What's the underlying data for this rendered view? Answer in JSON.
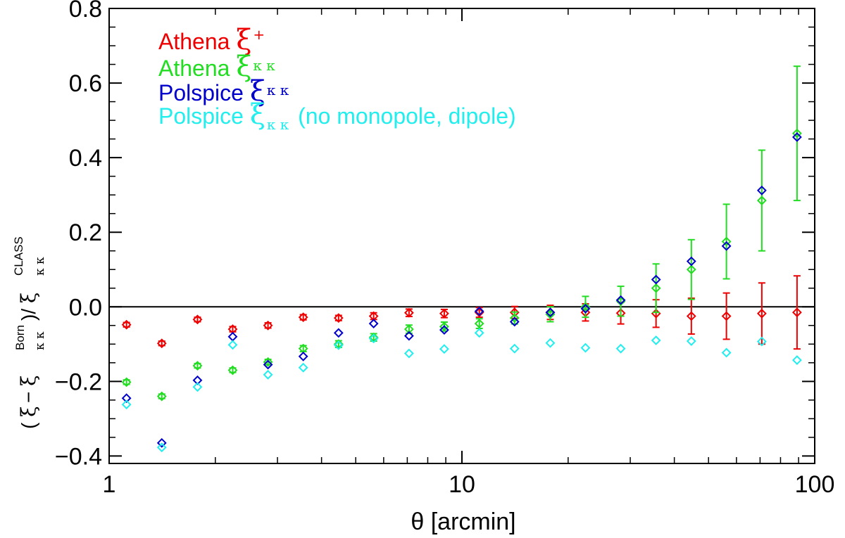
{
  "chart_data": {
    "type": "scatter",
    "xscale": "log",
    "xlim": [
      1,
      100
    ],
    "ylim": [
      -0.42,
      0.8
    ],
    "xlabel": "θ [arcmin]",
    "ylabel": {
      "open": "( ",
      "xi1": "ξ",
      "minus": " − ",
      "xi2": "ξ",
      "born": "Born",
      "kk1": "κ κ",
      "close_div": " )/ ",
      "xi3": "ξ",
      "class_sup": "CLASS",
      "kk2": "κ κ"
    },
    "x_ticks": [
      {
        "value": 1,
        "label": "1"
      },
      {
        "value": 10,
        "label": "10"
      },
      {
        "value": 100,
        "label": "100"
      }
    ],
    "y_ticks": [
      {
        "value": 0.8,
        "label": "0.8"
      },
      {
        "value": 0.6,
        "label": "0.6"
      },
      {
        "value": 0.4,
        "label": "0.4"
      },
      {
        "value": 0.2,
        "label": "0.2"
      },
      {
        "value": 0.0,
        "label": "0.0"
      },
      {
        "value": -0.2,
        "label": "−0.2"
      },
      {
        "value": -0.4,
        "label": "−0.4"
      }
    ],
    "zero_line": 0,
    "legend": [
      {
        "series": "athena_xi_plus",
        "label": "Athena ",
        "symbol": "ξ",
        "sub": "+",
        "sub_pos": "sup",
        "color": "#ee0000"
      },
      {
        "series": "athena_xi_kk",
        "label": "Athena ",
        "symbol": "ξ",
        "sub": "κ κ",
        "sub_pos": "mid",
        "color": "#22dd22"
      },
      {
        "series": "polspice_xi_kk",
        "label": "Polspice ",
        "symbol": "ξ",
        "sub": "κ κ",
        "sub_pos": "mid",
        "color": "#0000cc"
      },
      {
        "series": "polspice_xi_kk_nomono",
        "label": "Polspice ",
        "symbol": "ξ",
        "sub": "κ κ",
        "sub_pos": "sub",
        "suffix": " (no monopole, dipole)",
        "color": "#22eeee"
      }
    ],
    "series": [
      {
        "name": "Athena ξ+",
        "id": "athena_xi_plus",
        "color": "#ee0000",
        "x": [
          1.12,
          1.41,
          1.78,
          2.24,
          2.82,
          3.55,
          4.47,
          5.62,
          7.08,
          8.91,
          11.2,
          14.1,
          17.8,
          22.4,
          28.2,
          35.5,
          44.7,
          56.2,
          70.8,
          89.1
        ],
        "y": [
          -0.048,
          -0.098,
          -0.034,
          -0.06,
          -0.05,
          -0.028,
          -0.03,
          -0.025,
          -0.016,
          -0.018,
          -0.015,
          -0.015,
          -0.015,
          -0.015,
          -0.017,
          -0.018,
          -0.025,
          -0.025,
          -0.018,
          -0.015
        ],
        "err": [
          0.006,
          0.006,
          0.006,
          0.007,
          0.007,
          0.007,
          0.007,
          0.009,
          0.01,
          0.011,
          0.013,
          0.016,
          0.019,
          0.023,
          0.029,
          0.037,
          0.048,
          0.062,
          0.082,
          0.098
        ]
      },
      {
        "name": "Athena ξκκ",
        "id": "athena_xi_kk",
        "color": "#22dd22",
        "x": [
          1.12,
          1.41,
          1.78,
          2.24,
          2.82,
          3.55,
          4.47,
          5.62,
          7.08,
          8.91,
          11.2,
          14.1,
          17.8,
          22.4,
          28.2,
          35.5,
          44.7,
          56.2,
          70.8,
          89.1
        ],
        "y": [
          -0.202,
          -0.24,
          -0.158,
          -0.17,
          -0.148,
          -0.112,
          -0.1,
          -0.082,
          -0.06,
          -0.053,
          -0.045,
          -0.03,
          -0.02,
          0.0,
          0.015,
          0.05,
          0.1,
          0.175,
          0.285,
          0.465
        ],
        "err": [
          0.006,
          0.006,
          0.006,
          0.006,
          0.007,
          0.008,
          0.009,
          0.01,
          0.011,
          0.012,
          0.013,
          0.016,
          0.02,
          0.028,
          0.04,
          0.065,
          0.08,
          0.1,
          0.135,
          0.18
        ]
      },
      {
        "name": "Polspice ξκκ",
        "id": "polspice_xi_kk",
        "color": "#0000cc",
        "x": [
          1.12,
          1.41,
          1.78,
          2.24,
          2.82,
          3.55,
          4.47,
          5.62,
          7.08,
          8.91,
          11.2,
          14.1,
          17.8,
          22.4,
          28.2,
          35.5,
          44.7,
          56.2,
          70.8,
          89.1
        ],
        "y": [
          -0.245,
          -0.365,
          -0.197,
          -0.08,
          -0.155,
          -0.133,
          -0.07,
          -0.045,
          -0.078,
          -0.062,
          -0.012,
          -0.04,
          -0.015,
          -0.005,
          0.018,
          0.073,
          0.122,
          0.163,
          0.312,
          0.455
        ]
      },
      {
        "name": "Polspice ξκκ (no monopole, dipole)",
        "id": "polspice_xi_kk_nomono",
        "color": "#22eeee",
        "x": [
          1.12,
          1.41,
          1.78,
          2.24,
          2.82,
          3.55,
          4.47,
          5.62,
          7.08,
          8.91,
          11.2,
          14.1,
          17.8,
          22.4,
          28.2,
          35.5,
          44.7,
          56.2,
          70.8,
          89.1
        ],
        "y": [
          -0.262,
          -0.377,
          -0.215,
          -0.102,
          -0.182,
          -0.163,
          -0.103,
          -0.085,
          -0.125,
          -0.113,
          -0.07,
          -0.112,
          -0.097,
          -0.11,
          -0.112,
          -0.09,
          -0.092,
          -0.123,
          -0.093,
          -0.143
        ]
      }
    ]
  }
}
